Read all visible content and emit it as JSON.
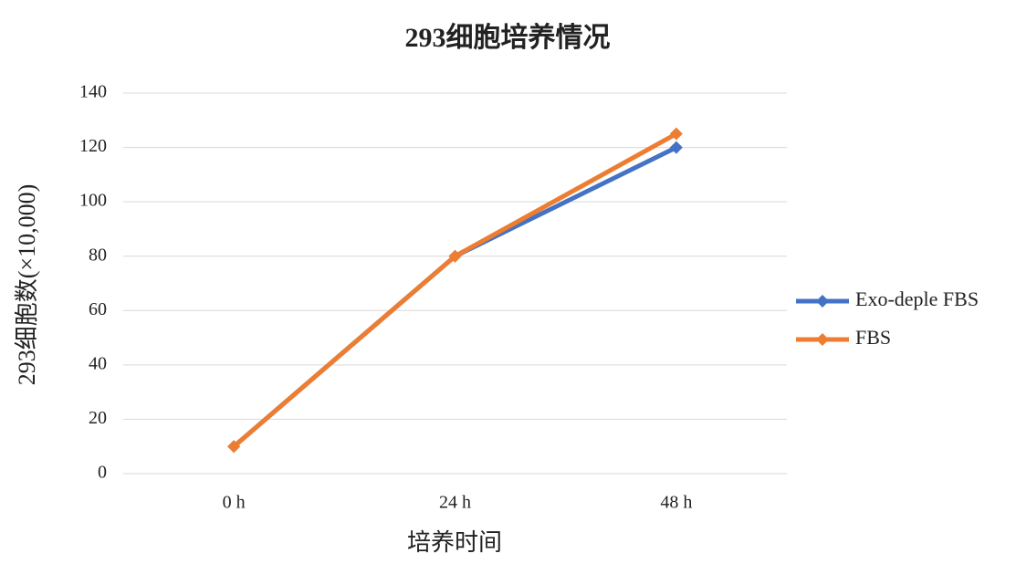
{
  "chart_data": {
    "type": "line",
    "title": "293细胞培养情况",
    "x_label": "培养时间",
    "y_label": "293细胞数(×10,000)",
    "categories": [
      "0 h",
      "24 h",
      "48 h"
    ],
    "series": [
      {
        "name": "Exo-deple FBS",
        "color": "#4472c4",
        "values": [
          10,
          80,
          120
        ]
      },
      {
        "name": "FBS",
        "color": "#ed7d31",
        "values": [
          10,
          80,
          125
        ]
      }
    ],
    "ylim": [
      0,
      140
    ],
    "yticks": [
      0,
      20,
      40,
      60,
      80,
      100,
      120,
      140
    ],
    "grid": true,
    "legend": "right"
  }
}
